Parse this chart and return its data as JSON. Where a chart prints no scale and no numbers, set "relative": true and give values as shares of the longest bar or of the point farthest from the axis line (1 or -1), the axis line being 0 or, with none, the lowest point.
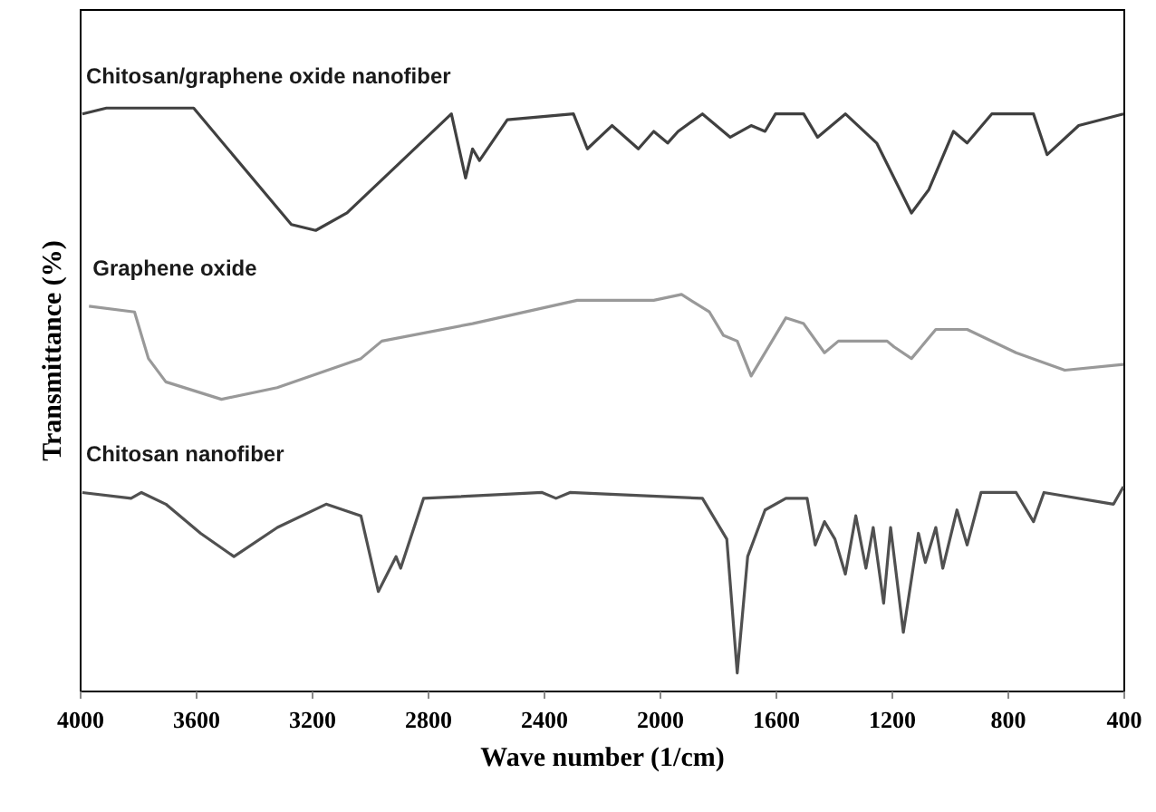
{
  "chart_data": {
    "type": "line",
    "xlabel": "Wave number (1/cm)",
    "ylabel": "Transmittance (%)",
    "relative": true,
    "xlim": [
      4000,
      400
    ],
    "xticks": [
      4000,
      3600,
      3200,
      2800,
      2400,
      2000,
      1600,
      1200,
      800,
      400
    ],
    "tick_labels": "x",
    "grid": false,
    "marker": "none",
    "line_style": "solid",
    "series": [
      {
        "name": "Chitosan/graphene oxide nanofiber",
        "color": "#404040",
        "x": [
          3991,
          3908,
          3607,
          3270,
          3186,
          3078,
          2909,
          2718,
          2669,
          2645,
          2621,
          2525,
          2297,
          2249,
          2164,
          2073,
          2020,
          1972,
          1936,
          1852,
          1756,
          1684,
          1636,
          1600,
          1503,
          1455,
          1359,
          1251,
          1131,
          1071,
          986,
          939,
          854,
          710,
          663,
          554,
          400
        ],
        "values": [
          0.99,
          1.0,
          1.0,
          0.8,
          0.79,
          0.82,
          0.9,
          0.99,
          0.88,
          0.93,
          0.91,
          0.98,
          0.99,
          0.93,
          0.97,
          0.93,
          0.96,
          0.94,
          0.96,
          0.99,
          0.95,
          0.97,
          0.96,
          0.99,
          0.99,
          0.95,
          0.99,
          0.94,
          0.82,
          0.86,
          0.96,
          0.94,
          0.99,
          0.99,
          0.92,
          0.97,
          0.99
        ]
      },
      {
        "name": "Graphene oxide",
        "color": "#999999",
        "x": [
          3968,
          3811,
          3763,
          3703,
          3511,
          3319,
          3030,
          2958,
          2645,
          2284,
          2020,
          1924,
          1828,
          1780,
          1732,
          1684,
          1564,
          1503,
          1431,
          1383,
          1215,
          1191,
          1131,
          1047,
          939,
          770,
          602,
          400
        ],
        "values": [
          0.66,
          0.65,
          0.57,
          0.53,
          0.5,
          0.52,
          0.57,
          0.6,
          0.63,
          0.67,
          0.67,
          0.68,
          0.65,
          0.61,
          0.6,
          0.54,
          0.64,
          0.63,
          0.58,
          0.6,
          0.6,
          0.59,
          0.57,
          0.62,
          0.62,
          0.58,
          0.55,
          0.56
        ]
      },
      {
        "name": "Chitosan nanofiber",
        "color": "#505050",
        "x": [
          3991,
          3823,
          3787,
          3703,
          3583,
          3468,
          3318,
          3150,
          3030,
          2970,
          2909,
          2893,
          2814,
          2405,
          2357,
          2309,
          1852,
          1768,
          1732,
          1696,
          1636,
          1564,
          1491,
          1463,
          1431,
          1395,
          1359,
          1323,
          1288,
          1263,
          1227,
          1203,
          1159,
          1107,
          1083,
          1047,
          1023,
          974,
          939,
          891,
          818,
          770,
          710,
          674,
          434,
          400
        ],
        "values": [
          0.34,
          0.33,
          0.34,
          0.32,
          0.27,
          0.23,
          0.28,
          0.32,
          0.3,
          0.17,
          0.23,
          0.21,
          0.33,
          0.34,
          0.33,
          0.34,
          0.33,
          0.26,
          0.03,
          0.23,
          0.31,
          0.33,
          0.33,
          0.25,
          0.29,
          0.26,
          0.2,
          0.3,
          0.21,
          0.28,
          0.15,
          0.28,
          0.1,
          0.27,
          0.22,
          0.28,
          0.21,
          0.31,
          0.25,
          0.34,
          0.34,
          0.34,
          0.29,
          0.34,
          0.32,
          0.35
        ]
      }
    ]
  }
}
